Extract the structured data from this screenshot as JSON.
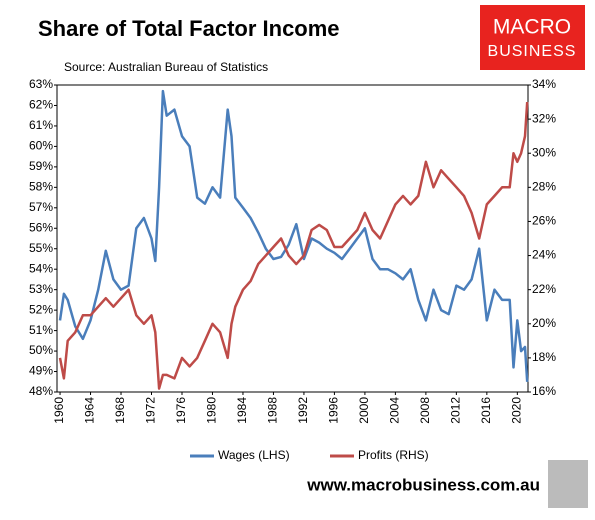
{
  "chart_data": {
    "type": "line",
    "title": "Share of Total Factor Income",
    "subtitle": "Source: Australian Bureau of Statistics",
    "logo": [
      "MACRO",
      "BUSINESS"
    ],
    "footer": "www.macrobusiness.com.au",
    "x": [
      1960,
      1960.5,
      1961,
      1962,
      1963,
      1964,
      1965,
      1966,
      1967,
      1968,
      1969,
      1970,
      1971,
      1972,
      1972.5,
      1973,
      1973.5,
      1974,
      1975,
      1976,
      1977,
      1978,
      1979,
      1980,
      1981,
      1982,
      1982.5,
      1983,
      1984,
      1985,
      1986,
      1987,
      1988,
      1989,
      1990,
      1991,
      1992,
      1993,
      1994,
      1995,
      1996,
      1997,
      1998,
      1999,
      2000,
      2001,
      2002,
      2003,
      2004,
      2005,
      2006,
      2007,
      2008,
      2009,
      2010,
      2011,
      2012,
      2013,
      2014,
      2015,
      2016,
      2017,
      2018,
      2019,
      2019.5,
      2020,
      2020.5,
      2021,
      2021.3
    ],
    "series": [
      {
        "name": "Wages (LHS)",
        "color": "#4a7ebb",
        "axis": "y",
        "values": [
          51.5,
          52.8,
          52.5,
          51.2,
          50.6,
          51.5,
          53.0,
          54.9,
          53.5,
          53.0,
          53.2,
          56.0,
          56.5,
          55.5,
          54.4,
          58.0,
          62.7,
          61.5,
          61.8,
          60.5,
          60.0,
          57.5,
          57.2,
          58.0,
          57.5,
          61.8,
          60.5,
          57.5,
          57.0,
          56.5,
          55.8,
          55.0,
          54.5,
          54.6,
          55.2,
          56.2,
          54.5,
          55.5,
          55.3,
          55.0,
          54.8,
          54.5,
          55.0,
          55.5,
          56.0,
          54.5,
          54.0,
          54.0,
          53.8,
          53.5,
          54.0,
          52.5,
          51.5,
          53.0,
          52.0,
          51.8,
          53.2,
          53.0,
          53.5,
          55.0,
          51.5,
          53.0,
          52.5,
          52.5,
          49.2,
          51.5,
          50.0,
          50.2,
          48.5
        ]
      },
      {
        "name": "Profits (RHS)",
        "color": "#be4b48",
        "axis": "y2",
        "values": [
          18.0,
          16.8,
          19.0,
          19.5,
          20.5,
          20.5,
          21.0,
          21.5,
          21.0,
          21.5,
          22.0,
          20.5,
          20.0,
          20.5,
          19.5,
          16.2,
          17.0,
          17.0,
          16.8,
          18.0,
          17.5,
          18.0,
          19.0,
          20.0,
          19.5,
          18.0,
          20.0,
          21.0,
          22.0,
          22.5,
          23.5,
          24.0,
          24.5,
          25.0,
          24.0,
          23.5,
          24.0,
          25.5,
          25.8,
          25.5,
          24.5,
          24.5,
          25.0,
          25.5,
          26.5,
          25.5,
          25.0,
          26.0,
          27.0,
          27.5,
          27.0,
          27.5,
          29.5,
          28.0,
          29.0,
          28.5,
          28.0,
          27.5,
          26.5,
          25.0,
          27.0,
          27.5,
          28.0,
          28.0,
          30.0,
          29.5,
          30.0,
          31.0,
          33.0
        ]
      }
    ],
    "xlim": [
      1959.6,
      2021.4
    ],
    "xticks": [
      1960,
      1964,
      1968,
      1972,
      1976,
      1980,
      1984,
      1988,
      1992,
      1996,
      2000,
      2004,
      2008,
      2012,
      2016,
      2020
    ],
    "ylim": [
      48,
      63
    ],
    "yticks": [
      {
        "value": 48,
        "label": "48%"
      },
      {
        "value": 49,
        "label": "49%"
      },
      {
        "value": 50,
        "label": "50%"
      },
      {
        "value": 51,
        "label": "51%"
      },
      {
        "value": 52,
        "label": "52%"
      },
      {
        "value": 53,
        "label": "53%"
      },
      {
        "value": 54,
        "label": "54%"
      },
      {
        "value": 55,
        "label": "55%"
      },
      {
        "value": 56,
        "label": "56%"
      },
      {
        "value": 57,
        "label": "57%"
      },
      {
        "value": 58,
        "label": "58%"
      },
      {
        "value": 59,
        "label": "59%"
      },
      {
        "value": 60,
        "label": "60%"
      },
      {
        "value": 61,
        "label": "61%"
      },
      {
        "value": 62,
        "label": "62%"
      },
      {
        "value": 63,
        "label": "63%"
      }
    ],
    "y2lim": [
      16,
      34
    ],
    "y2ticks": [
      {
        "value": 16,
        "label": "16%"
      },
      {
        "value": 18,
        "label": "18%"
      },
      {
        "value": 20,
        "label": "20%"
      },
      {
        "value": 22,
        "label": "22%"
      },
      {
        "value": 24,
        "label": "24%"
      },
      {
        "value": 26,
        "label": "26%"
      },
      {
        "value": 28,
        "label": "28%"
      },
      {
        "value": 30,
        "label": "30%"
      },
      {
        "value": 32,
        "label": "32%"
      },
      {
        "value": 34,
        "label": "34%"
      }
    ],
    "grid": false,
    "legend": "bottom"
  }
}
